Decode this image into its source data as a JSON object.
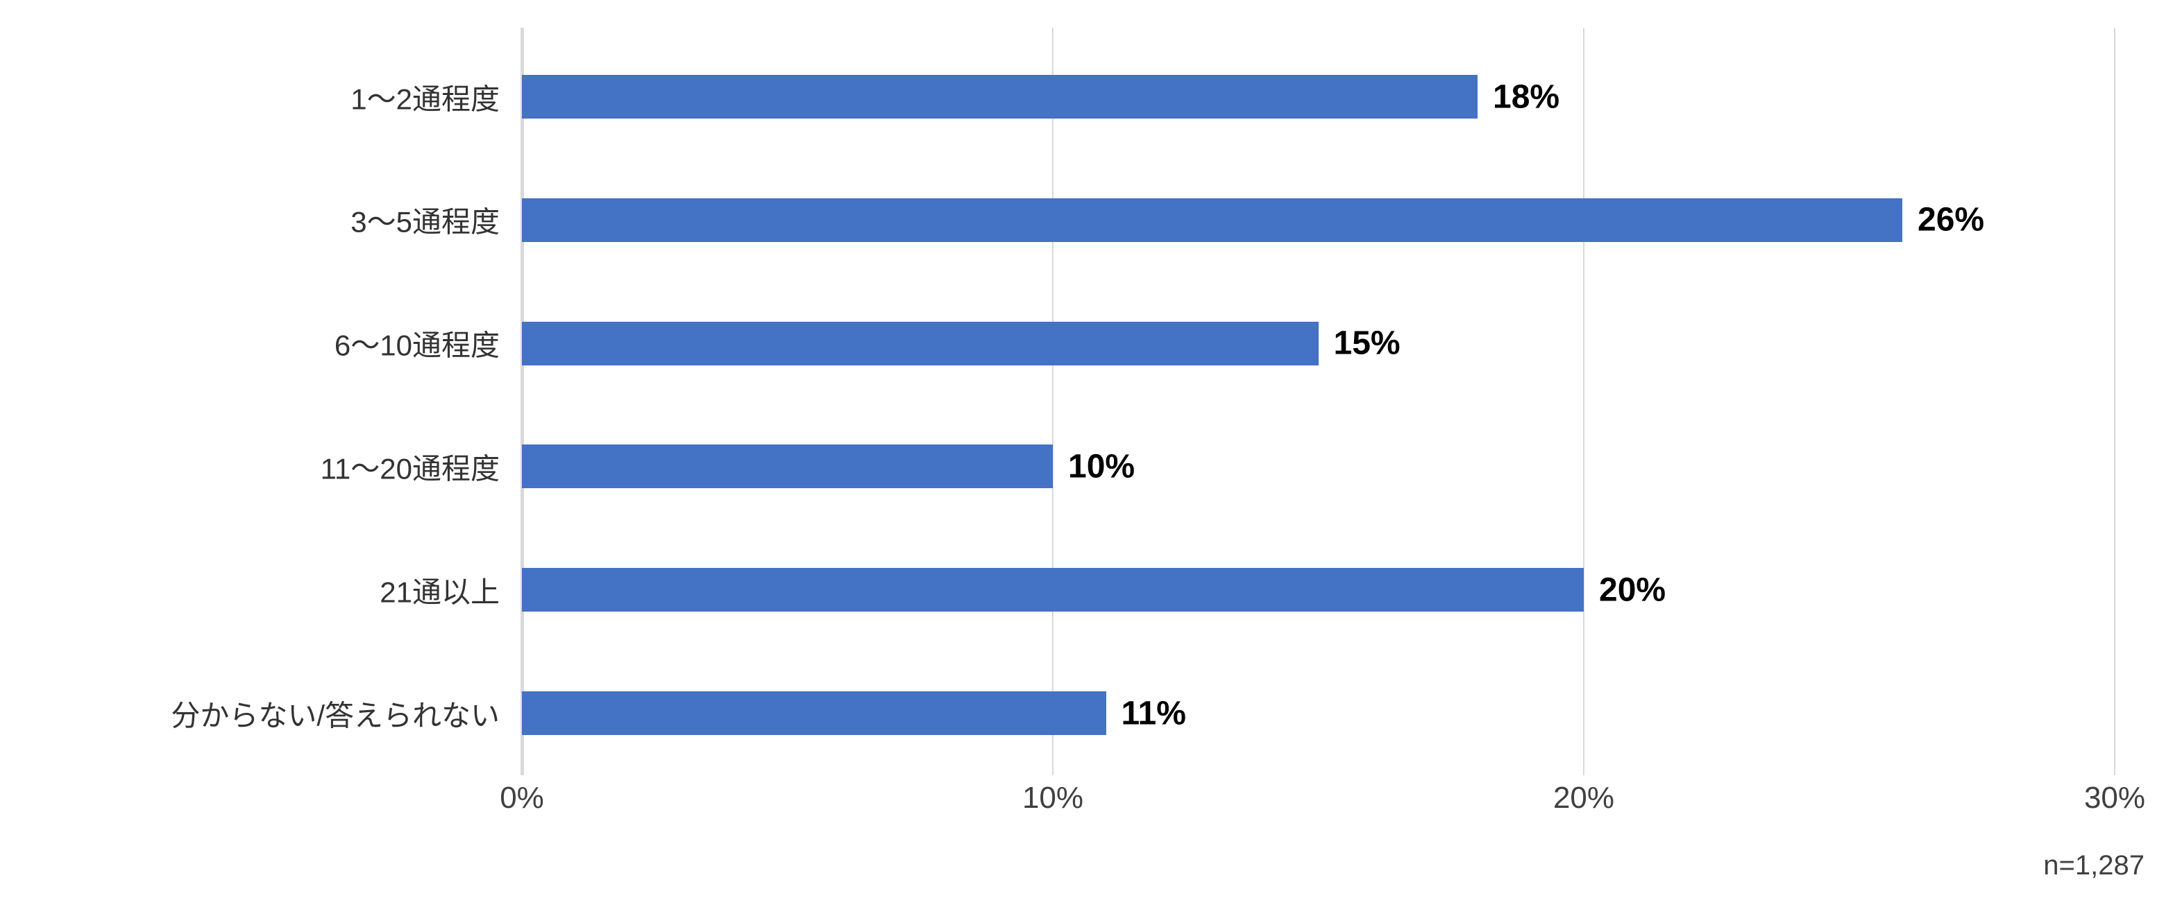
{
  "chart_data": {
    "type": "bar",
    "orientation": "horizontal",
    "title": "",
    "xlabel": "",
    "ylabel": "",
    "categories": [
      "1〜2通程度",
      "3〜5通程度",
      "6〜10通程度",
      "11〜20通程度",
      "21通以上",
      "分からない/答えられない"
    ],
    "values": [
      18,
      26,
      15,
      10,
      20,
      11
    ],
    "value_labels": [
      "18%",
      "26%",
      "15%",
      "10%",
      "20%",
      "11%"
    ],
    "x_ticks": [
      0,
      10,
      20,
      30
    ],
    "x_tick_labels": [
      "0%",
      "10%",
      "20%",
      "30%"
    ],
    "xlim": [
      0,
      30
    ],
    "grid": true,
    "legend_position": "none",
    "note": "n=1,287",
    "colors": {
      "bar": "#4472c4",
      "gridline": "#d9d9d9",
      "category_text": "#333333",
      "value_text": "#000000",
      "tick_text": "#404040"
    }
  }
}
